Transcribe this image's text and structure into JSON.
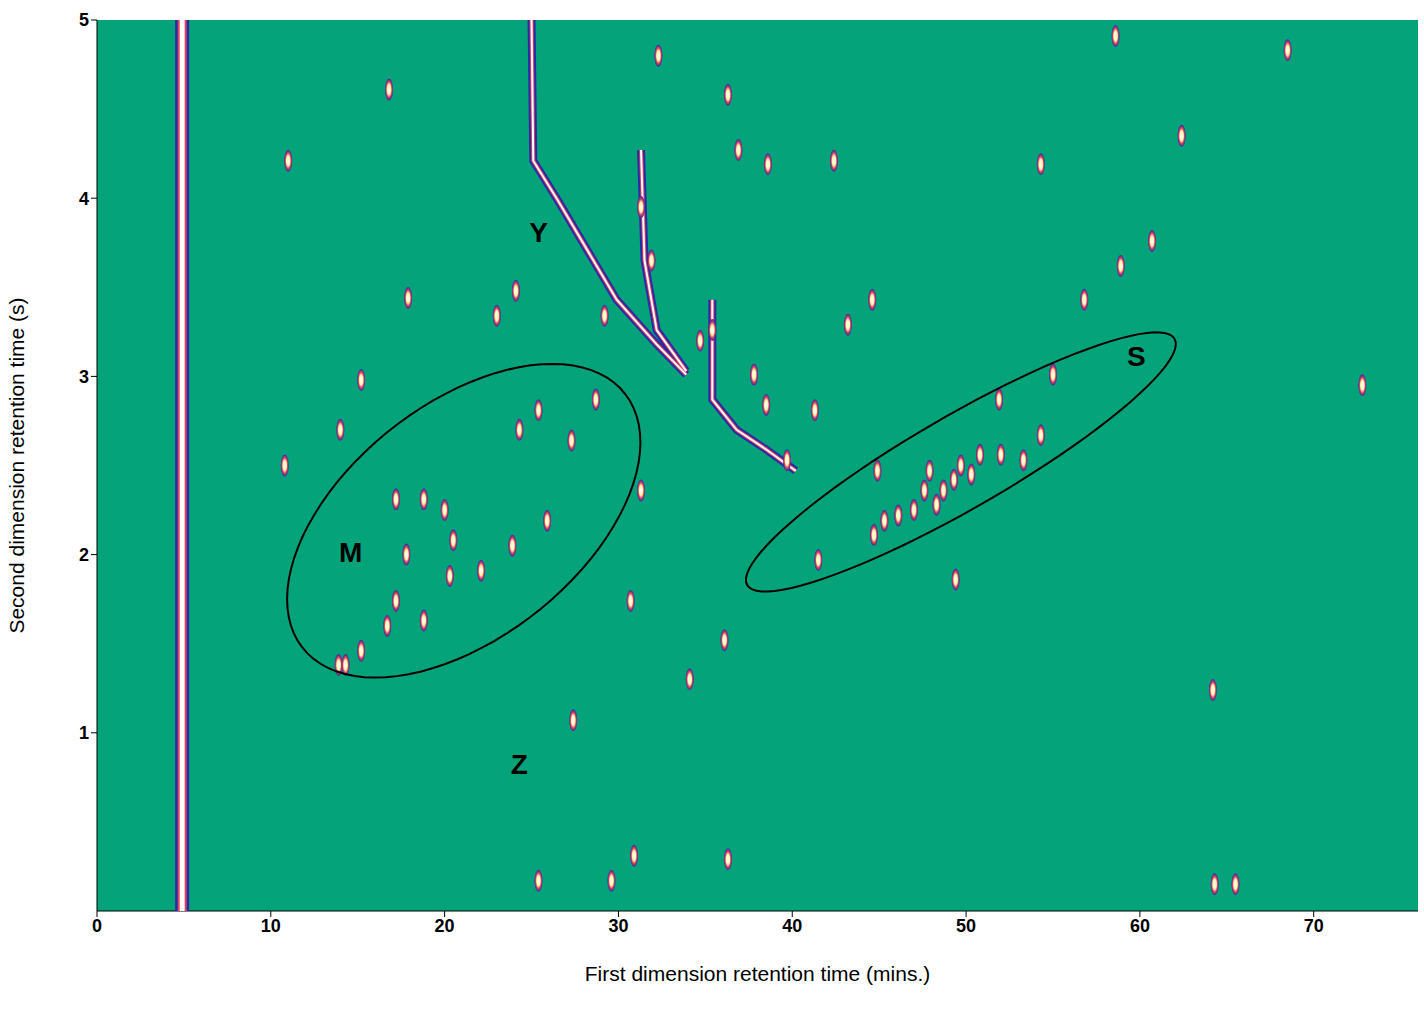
{
  "chart_data": {
    "type": "scatter",
    "x_label": "First dimension retention time (mins.)",
    "y_label": "Second dimension retention time (s)",
    "xlim": [
      0,
      76
    ],
    "xticks": [
      0,
      10,
      20,
      30,
      40,
      50,
      60,
      70
    ],
    "ylim": [
      0,
      5
    ],
    "yticks": [
      1,
      2,
      3,
      4,
      5
    ],
    "grid": false,
    "color": "#ffffff",
    "x": [
      16.8,
      11.0,
      17.9,
      23.0,
      24.1,
      29.2,
      32.3,
      31.3,
      31.9,
      36.3,
      36.9,
      38.6,
      42.4,
      43.2,
      44.6,
      54.3,
      58.9,
      60.7,
      62.4,
      68.5,
      58.6,
      72.8,
      34.7,
      35.4,
      37.8,
      38.5,
      41.3,
      39.7,
      28.7,
      27.3,
      25.4,
      24.3,
      31.3,
      17.2,
      18.8,
      20.0,
      20.5,
      20.3,
      17.8,
      17.2,
      18.8,
      16.7,
      15.2,
      13.9,
      14.3,
      25.9,
      22.1,
      23.9,
      10.8,
      14.0,
      15.2,
      44.9,
      44.7,
      45.3,
      46.1,
      47.0,
      47.6,
      47.9,
      48.3,
      48.7,
      49.3,
      49.7,
      50.3,
      50.8,
      52.0,
      53.3,
      54.3,
      55.0,
      51.9,
      56.8,
      49.4,
      34.1,
      36.1,
      30.7,
      27.4,
      30.9,
      29.6,
      36.3,
      25.4,
      64.3,
      65.5,
      41.5,
      64.2
    ],
    "y": [
      4.61,
      4.21,
      3.44,
      3.34,
      3.48,
      3.34,
      4.8,
      3.95,
      3.65,
      4.58,
      4.27,
      4.19,
      4.21,
      3.29,
      3.43,
      4.19,
      3.62,
      3.76,
      4.35,
      4.83,
      4.91,
      2.95,
      3.2,
      3.26,
      3.01,
      2.84,
      2.81,
      2.53,
      2.87,
      2.64,
      2.81,
      2.7,
      2.36,
      2.31,
      2.31,
      2.25,
      2.08,
      1.88,
      2.0,
      1.74,
      1.63,
      1.6,
      1.46,
      1.38,
      1.38,
      2.19,
      1.91,
      2.05,
      2.5,
      2.7,
      2.98,
      2.47,
      2.11,
      2.19,
      2.22,
      2.25,
      2.36,
      2.47,
      2.28,
      2.36,
      2.42,
      2.5,
      2.45,
      2.56,
      2.56,
      2.53,
      2.67,
      3.01,
      2.87,
      3.43,
      1.86,
      1.3,
      1.52,
      1.74,
      1.07,
      0.31,
      0.17,
      0.29,
      0.17,
      0.15,
      0.15,
      1.97,
      1.24
    ],
    "streaks": [
      {
        "x": [
          4.9,
          4.9
        ],
        "y": [
          0,
          5
        ]
      },
      {
        "x": [
          25.0,
          25.1,
          26.5,
          28.2,
          29.9,
          32.2,
          33.9
        ],
        "y": [
          5.0,
          4.21,
          3.99,
          3.71,
          3.43,
          3.18,
          3.01
        ]
      },
      {
        "x": [
          31.3,
          31.5,
          32.2,
          33.9
        ],
        "y": [
          4.27,
          3.65,
          3.26,
          3.03
        ]
      },
      {
        "x": [
          35.4,
          35.4,
          36.8,
          38.5,
          40.2
        ],
        "y": [
          3.43,
          2.87,
          2.7,
          2.59,
          2.47
        ]
      }
    ],
    "regions": [
      {
        "center": [
          21.1,
          2.19
        ],
        "major_end": [
          30.4,
          2.9
        ],
        "minor_end": [
          25.2,
          1.67
        ]
      },
      {
        "center": [
          49.7,
          2.52
        ],
        "major_end": [
          62.0,
          3.21
        ],
        "minor_end": [
          51.0,
          2.29
        ]
      }
    ],
    "annotations": [
      {
        "text": "M",
        "x": 14.6,
        "y": 2.01
      },
      {
        "text": "Y",
        "x": 25.4,
        "y": 3.81
      },
      {
        "text": "Z",
        "x": 24.3,
        "y": 0.82
      },
      {
        "text": "S",
        "x": 59.8,
        "y": 3.11
      }
    ]
  }
}
